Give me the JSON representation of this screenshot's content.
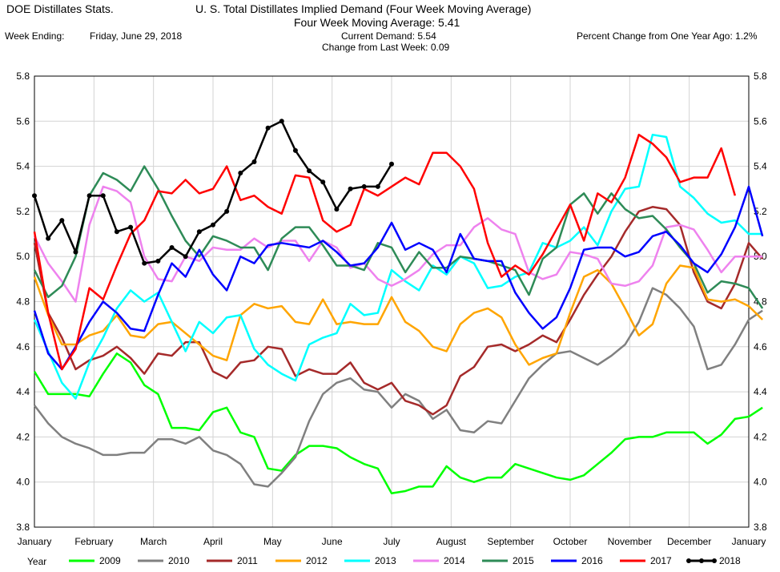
{
  "header": {
    "app_title": "DOE Distillates Stats.",
    "title": "U. S. Total Distillates Implied Demand  (Four Week Moving Average)",
    "subtitle_label": "Four Week Moving Average:",
    "subtitle_value": "5.41",
    "week_ending_label": "Week Ending:",
    "week_ending_value": "Friday, June 29, 2018",
    "current_demand_label": "Current Demand:",
    "current_demand_value": "5.54",
    "change_label": "Change from Last Week:",
    "change_value": "0.09",
    "pct_change_label": "Percent Change from One Year Ago:",
    "pct_change_value": "1.2%"
  },
  "legend": {
    "title": "Year"
  },
  "chart_data": {
    "type": "line",
    "title": "U. S. Total Distillates Implied Demand  (Four Week Moving Average)",
    "xlabel": "",
    "ylabel": "",
    "months": [
      "January",
      "February",
      "March",
      "April",
      "May",
      "June",
      "July",
      "August",
      "September",
      "October",
      "November",
      "December",
      "January"
    ],
    "xlim": [
      0,
      52
    ],
    "ylim": [
      3.8,
      5.8
    ],
    "yticks": [
      "3.8",
      "4.0",
      "4.2",
      "4.4",
      "4.6",
      "4.8",
      "5.0",
      "5.2",
      "5.4",
      "5.6",
      "5.8"
    ],
    "grid": true,
    "legend_position": "bottom",
    "series": [
      {
        "name": "2009",
        "color": "#00ff00",
        "markers": false,
        "values": [
          4.49,
          4.39,
          4.39,
          4.39,
          4.38,
          4.48,
          4.57,
          4.53,
          4.43,
          4.39,
          4.24,
          4.24,
          4.23,
          4.31,
          4.33,
          4.22,
          4.2,
          4.06,
          4.05,
          4.12,
          4.16,
          4.16,
          4.15,
          4.11,
          4.08,
          4.06,
          3.95,
          3.96,
          3.98,
          3.98,
          4.07,
          4.02,
          4.0,
          4.02,
          4.02,
          4.08,
          4.06,
          4.04,
          4.02,
          4.01,
          4.03,
          4.08,
          4.13,
          4.19,
          4.2,
          4.2,
          4.22,
          4.22,
          4.22,
          4.17,
          4.21,
          4.28,
          4.29,
          4.33
        ]
      },
      {
        "name": "2010",
        "color": "#808080",
        "markers": false,
        "values": [
          4.34,
          4.26,
          4.2,
          4.17,
          4.15,
          4.12,
          4.12,
          4.13,
          4.13,
          4.19,
          4.19,
          4.17,
          4.2,
          4.14,
          4.12,
          4.08,
          3.99,
          3.98,
          4.04,
          4.11,
          4.27,
          4.39,
          4.44,
          4.46,
          4.41,
          4.4,
          4.33,
          4.39,
          4.36,
          4.28,
          4.32,
          4.23,
          4.22,
          4.27,
          4.26,
          4.36,
          4.46,
          4.52,
          4.57,
          4.58,
          4.55,
          4.52,
          4.56,
          4.61,
          4.71,
          4.86,
          4.83,
          4.77,
          4.69,
          4.5,
          4.52,
          4.61,
          4.72,
          4.76
        ]
      },
      {
        "name": "2011",
        "color": "#a52a2a",
        "markers": false,
        "values": [
          5.06,
          4.75,
          4.64,
          4.5,
          4.54,
          4.56,
          4.6,
          4.55,
          4.48,
          4.57,
          4.56,
          4.62,
          4.62,
          4.49,
          4.46,
          4.53,
          4.54,
          4.6,
          4.59,
          4.47,
          4.5,
          4.48,
          4.48,
          4.53,
          4.44,
          4.41,
          4.44,
          4.36,
          4.34,
          4.3,
          4.34,
          4.47,
          4.51,
          4.6,
          4.61,
          4.58,
          4.61,
          4.65,
          4.62,
          4.72,
          4.83,
          4.92,
          5.0,
          5.11,
          5.2,
          5.22,
          5.21,
          5.14,
          4.93,
          4.8,
          4.77,
          4.88,
          5.06,
          4.99
        ]
      },
      {
        "name": "2012",
        "color": "#ffa500",
        "markers": false,
        "values": [
          4.91,
          4.74,
          4.61,
          4.61,
          4.65,
          4.67,
          4.74,
          4.65,
          4.64,
          4.7,
          4.71,
          4.66,
          4.61,
          4.56,
          4.54,
          4.74,
          4.79,
          4.77,
          4.78,
          4.71,
          4.7,
          4.81,
          4.7,
          4.71,
          4.7,
          4.7,
          4.82,
          4.71,
          4.67,
          4.6,
          4.58,
          4.7,
          4.75,
          4.77,
          4.73,
          4.61,
          4.52,
          4.55,
          4.57,
          4.75,
          4.91,
          4.94,
          4.88,
          4.77,
          4.65,
          4.7,
          4.88,
          4.96,
          4.95,
          4.81,
          4.8,
          4.81,
          4.78,
          4.72
        ]
      },
      {
        "name": "2013",
        "color": "#00ffff",
        "markers": false,
        "values": [
          4.72,
          4.58,
          4.44,
          4.37,
          4.53,
          4.64,
          4.77,
          4.85,
          4.8,
          4.84,
          4.71,
          4.58,
          4.71,
          4.66,
          4.73,
          4.74,
          4.59,
          4.52,
          4.48,
          4.45,
          4.61,
          4.64,
          4.66,
          4.79,
          4.74,
          4.75,
          4.94,
          4.89,
          4.85,
          4.96,
          4.92,
          5.0,
          4.97,
          4.86,
          4.87,
          4.91,
          4.93,
          5.06,
          5.04,
          5.07,
          5.13,
          5.05,
          5.2,
          5.3,
          5.31,
          5.54,
          5.53,
          5.31,
          5.26,
          5.19,
          5.15,
          5.16,
          5.1,
          5.1
        ]
      },
      {
        "name": "2014",
        "color": "#ee82ee",
        "markers": false,
        "values": [
          5.09,
          4.97,
          4.89,
          4.8,
          5.14,
          5.31,
          5.29,
          5.24,
          5.0,
          4.9,
          4.89,
          5.0,
          4.98,
          5.04,
          5.03,
          5.03,
          5.08,
          5.04,
          5.07,
          5.07,
          4.98,
          5.07,
          5.04,
          4.95,
          4.97,
          4.9,
          4.87,
          4.9,
          4.94,
          5.01,
          5.05,
          5.05,
          5.13,
          5.17,
          5.12,
          5.1,
          4.93,
          4.9,
          4.92,
          5.02,
          5.01,
          4.99,
          4.88,
          4.87,
          4.89,
          4.96,
          5.13,
          5.14,
          5.12,
          5.03,
          4.93,
          5.0,
          5.0,
          5.0
        ]
      },
      {
        "name": "2015",
        "color": "#2e8b57",
        "markers": false,
        "values": [
          4.94,
          4.82,
          4.87,
          5.0,
          5.27,
          5.37,
          5.34,
          5.29,
          5.4,
          5.3,
          5.18,
          5.07,
          5.0,
          5.09,
          5.07,
          5.04,
          5.04,
          4.94,
          5.08,
          5.13,
          5.13,
          5.05,
          4.96,
          4.96,
          4.94,
          5.06,
          5.04,
          4.93,
          5.02,
          4.95,
          4.95,
          5.0,
          4.99,
          4.98,
          4.96,
          4.94,
          4.83,
          4.99,
          5.04,
          5.23,
          5.28,
          5.19,
          5.28,
          5.21,
          5.17,
          5.18,
          5.12,
          5.04,
          4.97,
          4.84,
          4.89,
          4.88,
          4.86,
          4.77
        ]
      },
      {
        "name": "2016",
        "color": "#0000ff",
        "markers": false,
        "values": [
          4.76,
          4.57,
          4.5,
          4.6,
          4.71,
          4.8,
          4.75,
          4.68,
          4.67,
          4.83,
          4.97,
          4.91,
          5.03,
          4.92,
          4.85,
          5.0,
          4.97,
          5.05,
          5.06,
          5.05,
          5.04,
          5.07,
          5.02,
          4.96,
          4.97,
          5.04,
          5.15,
          5.03,
          5.06,
          5.03,
          4.93,
          5.1,
          4.99,
          4.98,
          4.98,
          4.84,
          4.75,
          4.68,
          4.73,
          4.86,
          5.03,
          5.04,
          5.04,
          5.0,
          5.02,
          5.09,
          5.11,
          5.05,
          4.97,
          4.93,
          5.01,
          5.13,
          5.31,
          5.09
        ]
      },
      {
        "name": "2017",
        "color": "#ff0000",
        "markers": false,
        "values": [
          5.11,
          4.75,
          4.5,
          4.59,
          4.86,
          4.81,
          4.96,
          5.1,
          5.16,
          5.29,
          5.28,
          5.34,
          5.28,
          5.3,
          5.4,
          5.25,
          5.27,
          5.22,
          5.19,
          5.36,
          5.35,
          5.16,
          5.11,
          5.14,
          5.3,
          5.27,
          5.31,
          5.35,
          5.32,
          5.46,
          5.46,
          5.4,
          5.3,
          5.06,
          4.91,
          4.96,
          4.92,
          5.01,
          5.12,
          5.23,
          5.07,
          5.28,
          5.24,
          5.35,
          5.54,
          5.5,
          5.44,
          5.33,
          5.35,
          5.35,
          5.48,
          5.27
        ]
      },
      {
        "name": "2018",
        "color": "#000000",
        "markers": true,
        "values": [
          5.27,
          5.08,
          5.16,
          5.02,
          5.27,
          5.27,
          5.11,
          5.13,
          4.97,
          4.98,
          5.04,
          5.0,
          5.11,
          5.14,
          5.2,
          5.37,
          5.42,
          5.57,
          5.6,
          5.47,
          5.38,
          5.33,
          5.21,
          5.3,
          5.31,
          5.31,
          5.41
        ]
      }
    ]
  }
}
